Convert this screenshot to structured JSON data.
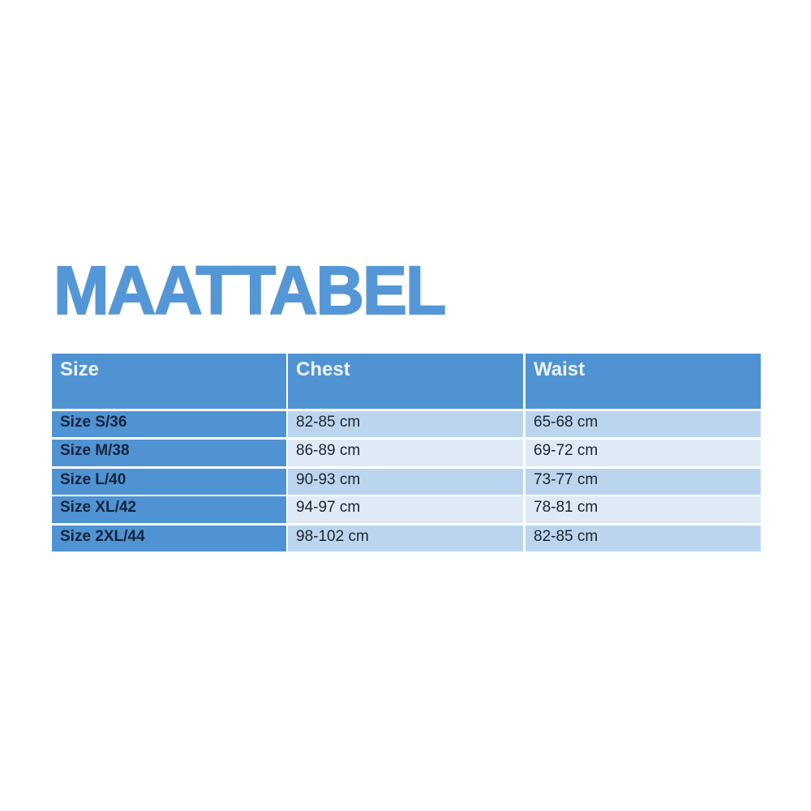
{
  "title": "MAATTABEL",
  "colors": {
    "accent": "#4f93d3",
    "title": "#5597d6",
    "row_dark": "#bcd5ef",
    "row_light": "#dfeaf6"
  },
  "table": {
    "headers": [
      "Size",
      "Chest",
      "Waist"
    ],
    "rows": [
      [
        "Size S/36",
        "82-85 cm",
        "65-68 cm"
      ],
      [
        "Size M/38",
        "86-89 cm",
        "69-72 cm"
      ],
      [
        "Size L/40",
        "90-93 cm",
        "73-77 cm"
      ],
      [
        "Size XL/42",
        "94-97 cm",
        "78-81 cm"
      ],
      [
        "Size 2XL/44",
        "98-102 cm",
        "82-85 cm"
      ]
    ]
  }
}
